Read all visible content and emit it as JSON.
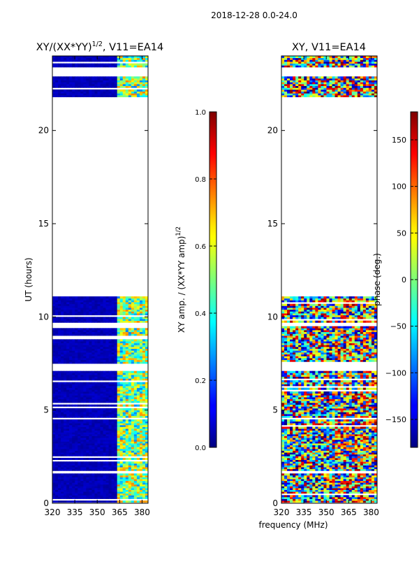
{
  "figure": {
    "suptitle": "2018-12-28 0.0-24.0",
    "shared_xlabel": "frequency (MHz)"
  },
  "chart_data": [
    {
      "type": "heatmap",
      "title": "XY/(XX*YY)",
      "title_superscript": "1/2",
      "title_suffix": ", V11=EA14",
      "xlabel": "",
      "ylabel": "UT (hours)",
      "xlim": [
        320,
        384
      ],
      "ylim": [
        0,
        24
      ],
      "xticks": [
        320,
        335,
        350,
        365,
        380
      ],
      "yticks": [
        0,
        5,
        10,
        15,
        20
      ],
      "colorscale": "jet",
      "colorbar": {
        "label": "XY amp. / (XX*YY amp)",
        "label_superscript": "1/2",
        "range": [
          0.0,
          1.0
        ],
        "ticks": [
          "0.0",
          "0.2",
          "0.4",
          "0.6",
          "0.8",
          "1.0"
        ]
      },
      "data_time_ranges_hours": [
        [
          0.05,
          1.6
        ],
        [
          1.75,
          4.5
        ],
        [
          4.6,
          7.1
        ],
        [
          7.5,
          9.5
        ],
        [
          9.7,
          11.1
        ],
        [
          21.8,
          22.9
        ],
        [
          23.4,
          24.0
        ]
      ],
      "bright_frequency_band_mhz": [
        362,
        383
      ],
      "typical_value_outside_band": 0.0,
      "typical_value_inside_band": 0.45
    },
    {
      "type": "heatmap",
      "title": "XY, V11=EA14",
      "xlabel": "frequency (MHz)",
      "ylabel": "",
      "xlim": [
        320,
        384
      ],
      "ylim": [
        0,
        24
      ],
      "xticks": [
        320,
        335,
        350,
        365,
        380
      ],
      "yticks": [
        0,
        5,
        10,
        15,
        20
      ],
      "colorscale": "jet",
      "colorbar": {
        "label": "phase (deg.)",
        "range": [
          -180,
          180
        ],
        "ticks": [
          "−150",
          "−100",
          "−50",
          "0",
          "50",
          "100",
          "150"
        ]
      },
      "data_time_ranges_hours": [
        [
          0.05,
          1.6
        ],
        [
          1.75,
          4.5
        ],
        [
          4.6,
          7.1
        ],
        [
          7.5,
          9.5
        ],
        [
          9.7,
          11.1
        ],
        [
          21.8,
          22.9
        ],
        [
          23.4,
          24.0
        ]
      ],
      "value_range_deg": [
        -180,
        180
      ]
    }
  ]
}
